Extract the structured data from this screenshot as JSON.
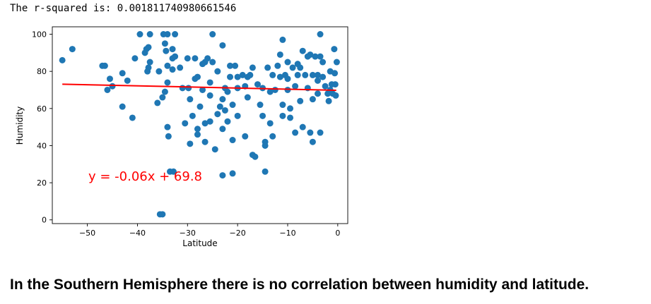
{
  "output": {
    "r_squared_text": "The r-squared is: 0.001811740980661546"
  },
  "conclusion": "In the Southern Hemisphere there is no correlation between humidity and latitude.",
  "chart_data": {
    "type": "scatter",
    "xlabel": "Latitude",
    "ylabel": "Humidity",
    "xlim": [
      -57,
      2
    ],
    "ylim": [
      -2,
      104
    ],
    "xticks": [
      -50,
      -40,
      -30,
      -20,
      -10,
      0
    ],
    "yticks": [
      0,
      20,
      40,
      60,
      80,
      100
    ],
    "grid": false,
    "point_color": "#1f77b4",
    "line_color": "#ff0000",
    "regression": {
      "equation": "y = -0.06x + 69.8",
      "slope": -0.06,
      "intercept": 69.8,
      "x_range": [
        -55,
        -0.3
      ]
    },
    "points": [
      [
        -55,
        86
      ],
      [
        -53,
        92
      ],
      [
        -47,
        83
      ],
      [
        -46.5,
        83
      ],
      [
        -46,
        70
      ],
      [
        -45.5,
        76
      ],
      [
        -45,
        72
      ],
      [
        -43,
        79
      ],
      [
        -42,
        75
      ],
      [
        -43,
        61
      ],
      [
        -41,
        55
      ],
      [
        -40.5,
        87
      ],
      [
        -39.5,
        100
      ],
      [
        -38.5,
        90
      ],
      [
        -38.2,
        92
      ],
      [
        -37.8,
        93
      ],
      [
        -37.5,
        100
      ],
      [
        -38,
        80
      ],
      [
        -37.8,
        82
      ],
      [
        -37.5,
        85
      ],
      [
        -36,
        63
      ],
      [
        -35.7,
        80
      ],
      [
        -35,
        66
      ],
      [
        -35.5,
        3
      ],
      [
        -35,
        3
      ],
      [
        -34.8,
        100
      ],
      [
        -34.5,
        95
      ],
      [
        -34.3,
        91
      ],
      [
        -34,
        100
      ],
      [
        -34,
        74
      ],
      [
        -34,
        83
      ],
      [
        -34.5,
        69
      ],
      [
        -34,
        50
      ],
      [
        -33.8,
        45
      ],
      [
        -33.5,
        26
      ],
      [
        -33,
        87
      ],
      [
        -33,
        81
      ],
      [
        -33,
        92
      ],
      [
        -32.5,
        100
      ],
      [
        -32.5,
        88
      ],
      [
        -32.8,
        26
      ],
      [
        -31.5,
        82
      ],
      [
        -31,
        71
      ],
      [
        -30.5,
        52
      ],
      [
        -30,
        87
      ],
      [
        -29.8,
        71
      ],
      [
        -29.5,
        65
      ],
      [
        -29.5,
        41
      ],
      [
        -29,
        56
      ],
      [
        -28.5,
        87
      ],
      [
        -28.5,
        76
      ],
      [
        -28,
        49
      ],
      [
        -28,
        46
      ],
      [
        -27.5,
        61
      ],
      [
        -27,
        70
      ],
      [
        -26.5,
        85
      ],
      [
        -26.5,
        52
      ],
      [
        -26.5,
        42
      ],
      [
        -26,
        87
      ],
      [
        -25.5,
        67
      ],
      [
        -25.5,
        74
      ],
      [
        -25.5,
        53
      ],
      [
        -25,
        100
      ],
      [
        -25,
        85
      ],
      [
        -24.5,
        38
      ],
      [
        -24,
        80
      ],
      [
        -24,
        57
      ],
      [
        -23.5,
        61
      ],
      [
        -23,
        94
      ],
      [
        -23,
        65
      ],
      [
        -23,
        49
      ],
      [
        -23,
        24
      ],
      [
        -22.5,
        71
      ],
      [
        -22.5,
        59
      ],
      [
        -22,
        69
      ],
      [
        -22,
        53
      ],
      [
        -21.5,
        83
      ],
      [
        -21.5,
        77
      ],
      [
        -21,
        62
      ],
      [
        -21,
        43
      ],
      [
        -21,
        25
      ],
      [
        -20.5,
        83
      ],
      [
        -20,
        77
      ],
      [
        -20,
        71
      ],
      [
        -20,
        56
      ],
      [
        -19,
        78
      ],
      [
        -18.5,
        45
      ],
      [
        -18,
        77
      ],
      [
        -18,
        66
      ],
      [
        -17.5,
        78
      ],
      [
        -17,
        82
      ],
      [
        -17,
        35
      ],
      [
        -16.5,
        34
      ],
      [
        -16,
        73
      ],
      [
        -15.5,
        62
      ],
      [
        -15,
        71
      ],
      [
        -15,
        56
      ],
      [
        -14.5,
        42
      ],
      [
        -14.5,
        40
      ],
      [
        -14.5,
        26
      ],
      [
        -14,
        82
      ],
      [
        -13.5,
        69
      ],
      [
        -13.5,
        52
      ],
      [
        -13,
        78
      ],
      [
        -13,
        45
      ],
      [
        -12.5,
        70
      ],
      [
        -12,
        83
      ],
      [
        -11.5,
        89
      ],
      [
        -11.5,
        77
      ],
      [
        -11,
        97
      ],
      [
        -11,
        62
      ],
      [
        -11,
        56
      ],
      [
        -10.5,
        78
      ],
      [
        -10,
        85
      ],
      [
        -10,
        76
      ],
      [
        -10,
        70
      ],
      [
        -9.5,
        60
      ],
      [
        -9.5,
        55
      ],
      [
        -9,
        82
      ],
      [
        -8.5,
        72
      ],
      [
        -8.5,
        47
      ],
      [
        -8,
        84
      ],
      [
        -8,
        78
      ],
      [
        -7.5,
        82
      ],
      [
        -7.5,
        64
      ],
      [
        -7,
        91
      ],
      [
        -7,
        50
      ],
      [
        -6.5,
        78
      ],
      [
        -6,
        88
      ],
      [
        -6,
        71
      ],
      [
        -5.5,
        89
      ],
      [
        -5.5,
        47
      ],
      [
        -5,
        78
      ],
      [
        -5,
        65
      ],
      [
        -5,
        42
      ],
      [
        -4.5,
        88
      ],
      [
        -4,
        78
      ],
      [
        -4,
        75
      ],
      [
        -4,
        68
      ],
      [
        -3.5,
        100
      ],
      [
        -3.5,
        88
      ],
      [
        -3.5,
        47
      ],
      [
        -3,
        77
      ],
      [
        -3,
        85
      ],
      [
        -2.5,
        72
      ],
      [
        -2,
        68
      ],
      [
        -1.8,
        64
      ],
      [
        -1.5,
        80
      ],
      [
        -1.2,
        73
      ],
      [
        -1,
        68
      ],
      [
        -0.7,
        92
      ],
      [
        -0.6,
        79
      ],
      [
        -0.5,
        73
      ],
      [
        -0.4,
        67
      ],
      [
        -1.5,
        70
      ],
      [
        -0.2,
        85
      ],
      [
        -28,
        77
      ],
      [
        -18.5,
        72
      ],
      [
        -27,
        84
      ]
    ]
  }
}
